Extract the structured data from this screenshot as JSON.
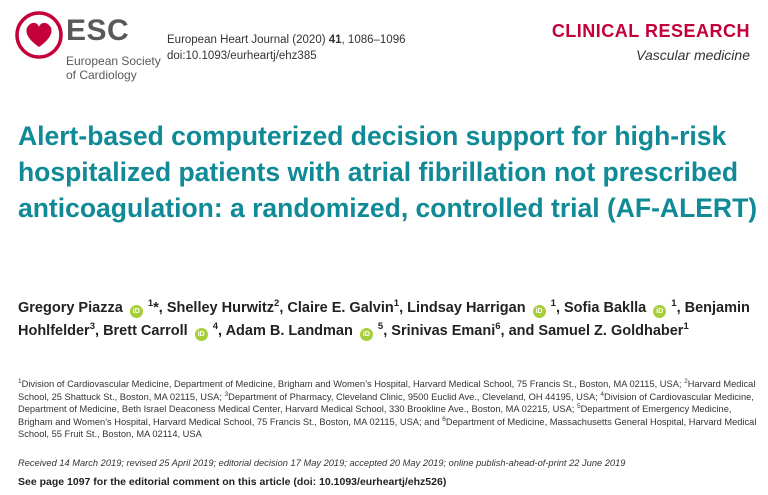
{
  "logo": {
    "acronym": "ESC",
    "name_line1": "European Society",
    "name_line2": "of Cardiology",
    "mark_color": "#c4003a"
  },
  "citation": {
    "journal_prefix": "European Heart Journal (2020) ",
    "volume": "41",
    "pages": ", 1086–1096",
    "doi": "doi:10.1093/eurheartj/ehz385"
  },
  "section": {
    "kind": "CLINICAL RESEARCH",
    "subject": "Vascular medicine"
  },
  "title": "Alert-based computerized decision support for high-risk hospitalized patients with atrial fibrillation not prescribed anticoagulation: a randomized, controlled trial (AF-ALERT)",
  "authors": [
    {
      "name": "Gregory Piazza",
      "orcid": true,
      "sup": "1",
      "suffix": "*",
      "sep": ", "
    },
    {
      "name": "Shelley Hurwitz",
      "orcid": false,
      "sup": "2",
      "suffix": "",
      "sep": ", "
    },
    {
      "name": "Claire E. Galvin",
      "orcid": false,
      "sup": "1",
      "suffix": "",
      "sep": ", "
    },
    {
      "name": "Lindsay Harrigan",
      "orcid": true,
      "sup": "1",
      "suffix": "",
      "sep": ", "
    },
    {
      "name": "Sofia Baklla",
      "orcid": true,
      "sup": "1",
      "suffix": "",
      "sep": ", "
    },
    {
      "name": "Benjamin Hohlfelder",
      "orcid": false,
      "sup": "3",
      "suffix": "",
      "sep": ", "
    },
    {
      "name": "Brett Carroll",
      "orcid": true,
      "sup": "4",
      "suffix": "",
      "sep": ", "
    },
    {
      "name": "Adam B. Landman",
      "orcid": true,
      "sup": "5",
      "suffix": "",
      "sep": ", "
    },
    {
      "name": "Srinivas Emani",
      "orcid": false,
      "sup": "6",
      "suffix": "",
      "sep": ", and "
    },
    {
      "name": "Samuel Z. Goldhaber",
      "orcid": false,
      "sup": "1",
      "suffix": "",
      "sep": ""
    }
  ],
  "orcid_glyph": "iD",
  "orcid_color": "#a6ce39",
  "affiliations": [
    {
      "sup": "1",
      "text": "Division of Cardiovascular Medicine, Department of Medicine, Brigham and Women’s Hospital, Harvard Medical School, 75 Francis St., Boston, MA 02115, USA; "
    },
    {
      "sup": "2",
      "text": "Harvard Medical School, 25 Shattuck St., Boston, MA 02115, USA; "
    },
    {
      "sup": "3",
      "text": "Department of Pharmacy, Cleveland Clinic, 9500 Euclid Ave., Cleveland, OH 44195, USA; "
    },
    {
      "sup": "4",
      "text": "Division of Cardiovascular Medicine, Department of Medicine, Beth Israel Deaconess Medical Center, Harvard Medical School, 330 Brookline Ave., Boston, MA 02215, USA; "
    },
    {
      "sup": "5",
      "text": "Department of Emergency Medicine, Brigham and Women’s Hospital, Harvard Medical School, 75 Francis St., Boston, MA 02115, USA; and "
    },
    {
      "sup": "6",
      "text": "Department of Medicine, Massachusetts General Hospital, Harvard Medical School, 55 Fruit St., Boston, MA 02114, USA"
    }
  ],
  "dates": "Received 14 March 2019; revised 25 April 2019; editorial decision 17 May 2019; accepted 20 May 2019; online publish-ahead-of-print 22 June 2019",
  "editorial_note": "See page 1097 for the editorial comment on this article (doi: 10.1093/eurheartj/ehz526)"
}
